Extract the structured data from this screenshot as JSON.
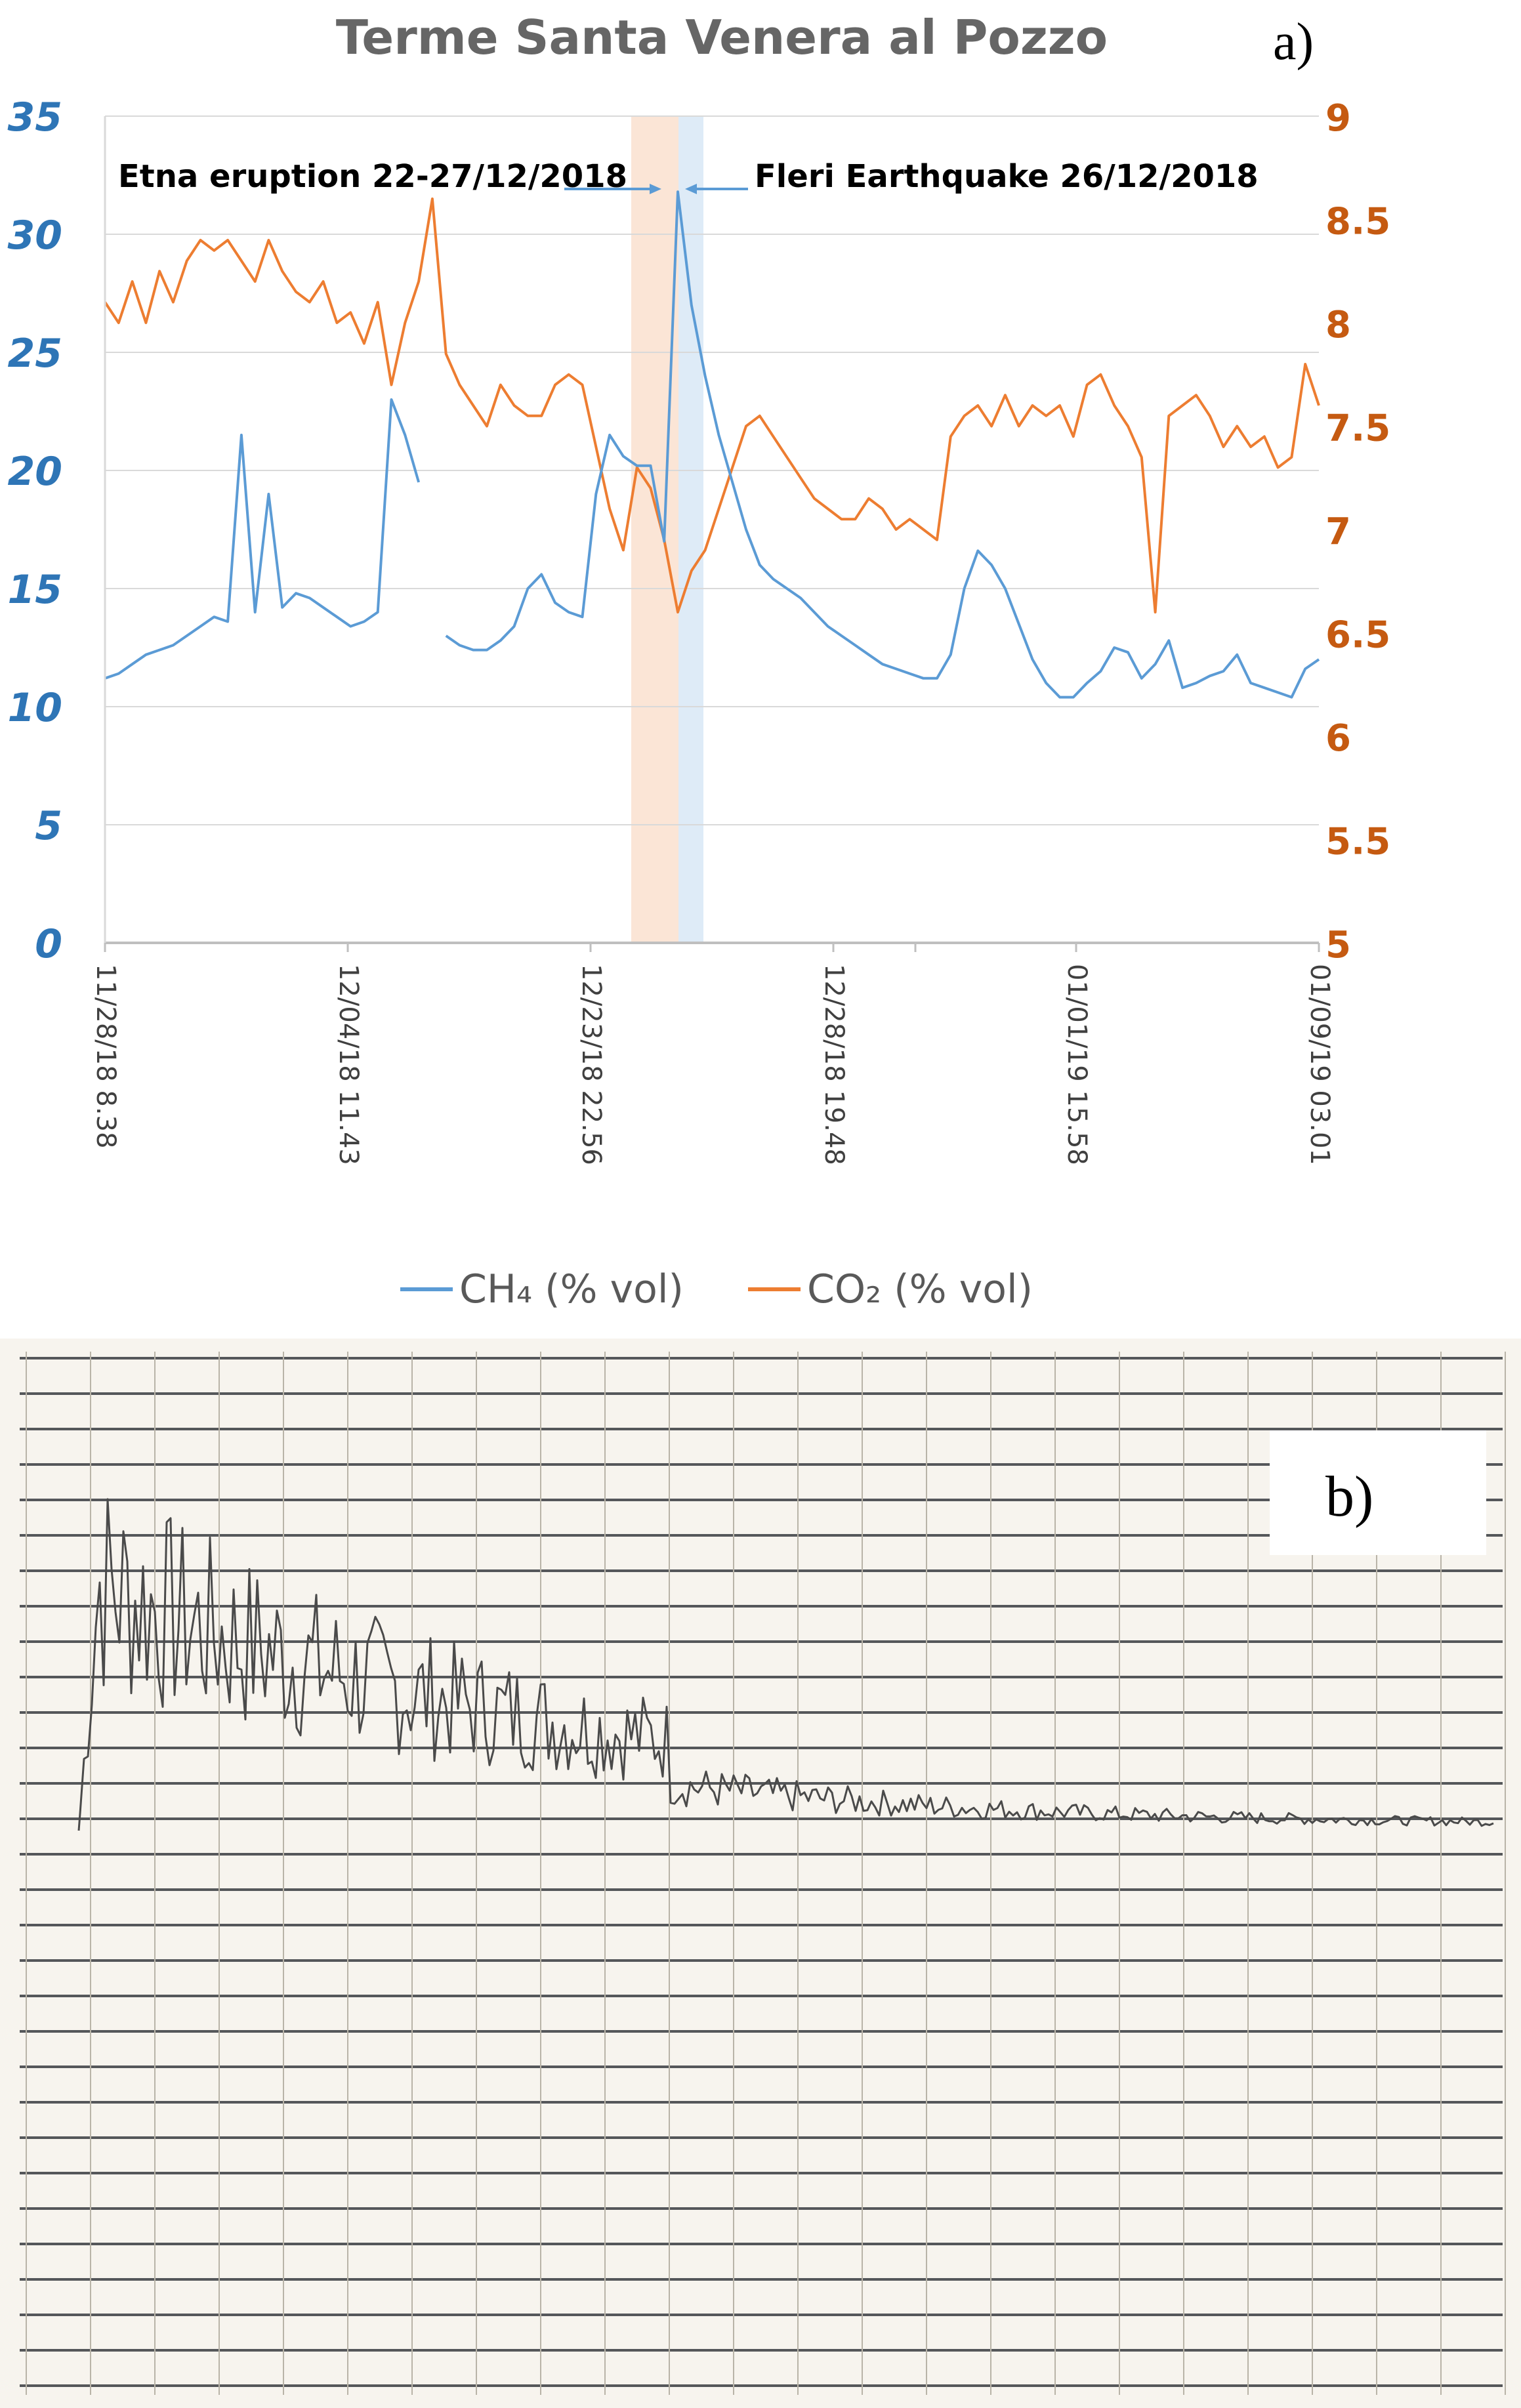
{
  "figure": {
    "panel_a_label": "a)",
    "panel_b_label": "b)"
  },
  "chart_data": [
    {
      "type": "line",
      "title": "Terme Santa Venera al Pozzo",
      "x_tick_labels": [
        "11/28/18 8.38",
        "12/04/18 11.43",
        "12/23/18 22.56",
        "12/28/18 19.48",
        "01/01/19 15.58",
        "01/09/19 03.01"
      ],
      "y_left": {
        "ticks": [
          "0",
          "5",
          "10",
          "15",
          "20",
          "25",
          "30",
          "35"
        ],
        "range": [
          0,
          35
        ],
        "color": "#2e75b6"
      },
      "y_right": {
        "ticks": [
          "5",
          "5.5",
          "6",
          "6.5",
          "7",
          "7.5",
          "8",
          "8.5",
          "9"
        ],
        "range": [
          5,
          9
        ],
        "color": "#c55a11"
      },
      "grid": true,
      "legend_position": "bottom",
      "annotations": [
        {
          "text": "Etna eruption 22-27/12/2018",
          "type": "shaded-band",
          "color": "#fbe5d6"
        },
        {
          "text": "Fleri Earthquake 26/12/2018",
          "type": "shaded-band",
          "color": "#deebf7"
        }
      ],
      "series": [
        {
          "name": "CH₄ (% vol)",
          "axis": "left",
          "color": "#5b9bd5",
          "values": [
            11.2,
            11.4,
            11.8,
            12.2,
            12.4,
            12.6,
            13.0,
            13.4,
            13.8,
            13.6,
            21.5,
            14.0,
            19.0,
            14.2,
            14.8,
            14.6,
            14.2,
            13.8,
            13.4,
            13.6,
            14.0,
            23.0,
            21.5,
            19.5,
            null,
            13.0,
            12.6,
            12.4,
            12.4,
            12.8,
            13.4,
            15.0,
            15.6,
            14.4,
            14.0,
            13.8,
            19.0,
            21.5,
            20.6,
            20.2,
            20.2,
            17.0,
            31.8,
            27.0,
            24.0,
            21.5,
            19.5,
            17.5,
            16.0,
            15.4,
            15.0,
            14.6,
            14.0,
            13.4,
            13.0,
            12.6,
            12.2,
            11.8,
            11.6,
            11.4,
            11.2,
            11.2,
            12.2,
            15.0,
            16.6,
            16.0,
            15.0,
            13.5,
            12.0,
            11.0,
            10.4,
            10.4,
            11.0,
            11.5,
            12.5,
            12.3,
            11.2,
            11.8,
            12.8,
            10.8,
            11.0,
            11.3,
            11.5,
            12.2,
            11.0,
            10.8,
            10.6,
            10.4,
            11.6,
            12.0
          ]
        },
        {
          "name": "CO₂ (% vol)",
          "axis": "right",
          "color": "#ed7d31",
          "values": [
            8.1,
            8.0,
            8.2,
            8.0,
            8.25,
            8.1,
            8.3,
            8.4,
            8.35,
            8.4,
            8.3,
            8.2,
            8.4,
            8.25,
            8.15,
            8.1,
            8.2,
            8.0,
            8.05,
            7.9,
            8.1,
            7.7,
            8.0,
            8.2,
            8.6,
            7.85,
            7.7,
            7.6,
            7.5,
            7.7,
            7.6,
            7.55,
            7.55,
            7.7,
            7.75,
            7.7,
            7.4,
            7.1,
            6.9,
            7.3,
            7.2,
            6.95,
            6.6,
            6.8,
            6.9,
            7.1,
            7.3,
            7.5,
            7.55,
            7.45,
            7.35,
            7.25,
            7.15,
            7.1,
            7.05,
            7.05,
            7.15,
            7.1,
            7.0,
            7.05,
            7.0,
            6.95,
            7.45,
            7.55,
            7.6,
            7.5,
            7.65,
            7.5,
            7.6,
            7.55,
            7.6,
            7.45,
            7.7,
            7.75,
            7.6,
            7.5,
            7.35,
            6.6,
            7.55,
            7.6,
            7.65,
            7.55,
            7.4,
            7.5,
            7.4,
            7.45,
            7.3,
            7.35,
            7.8,
            7.6
          ]
        }
      ]
    },
    {
      "type": "seismogram",
      "description_label": "",
      "trace_color": "#4a4a4a"
    }
  ]
}
